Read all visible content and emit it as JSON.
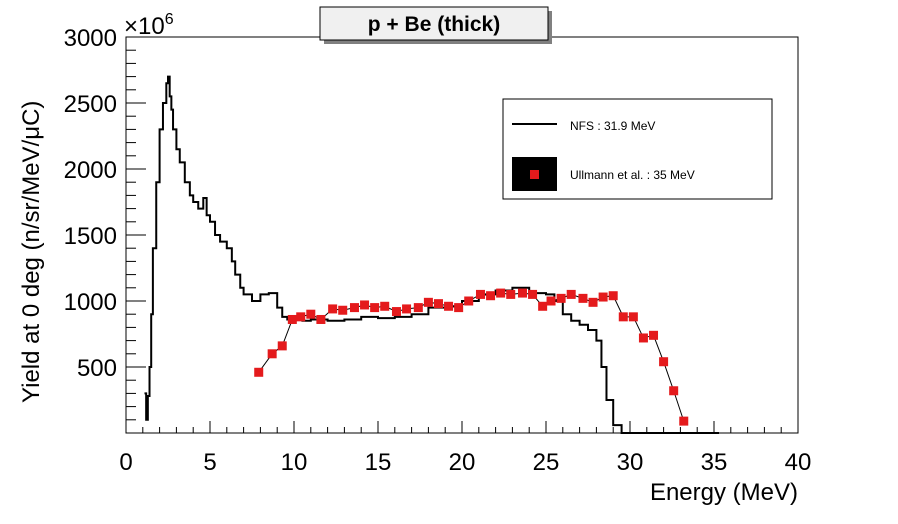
{
  "chart_data": {
    "type": "line",
    "title": "p + Be (thick)",
    "xlabel": "Energy (MeV)",
    "ylabel": "Yield at 0 deg (n/sr/MeV/μC)",
    "y_multiplier_label": "×10",
    "y_multiplier_exponent": "6",
    "xlim": [
      0,
      40
    ],
    "ylim": [
      0,
      3000
    ],
    "x_ticks": [
      0,
      5,
      10,
      15,
      20,
      25,
      30,
      35,
      40
    ],
    "y_ticks": [
      500,
      1000,
      1500,
      2000,
      2500,
      3000
    ],
    "grid": false,
    "legend_position": "top-right",
    "series": [
      {
        "name": "NFS : 31.9 MeV",
        "style": "line",
        "color": "#000000",
        "x": [
          1.1,
          1.2,
          1.3,
          1.4,
          1.5,
          1.6,
          1.8,
          2.0,
          2.2,
          2.4,
          2.5,
          2.6,
          2.7,
          2.8,
          3.0,
          3.2,
          3.5,
          3.8,
          4.0,
          4.3,
          4.6,
          4.8,
          5.0,
          5.3,
          5.6,
          6.0,
          6.3,
          6.5,
          6.8,
          7.0,
          7.5,
          8.0,
          8.5,
          9.0,
          9.3,
          9.6,
          10.0,
          10.5,
          11.0,
          12.0,
          13.0,
          14.0,
          15.0,
          16.0,
          17.0,
          18.0,
          19.0,
          20.0,
          21.0,
          22.0,
          23.0,
          24.0,
          25.0,
          25.5,
          26.0,
          26.5,
          27.0,
          27.5,
          28.0,
          28.3,
          28.6,
          29.0,
          29.5,
          30.0,
          31.0,
          32.0,
          33.0,
          34.0,
          35.0,
          35.3
        ],
        "y": [
          300,
          100,
          280,
          500,
          900,
          1400,
          1900,
          2300,
          2500,
          2650,
          2700,
          2550,
          2450,
          2300,
          2150,
          2050,
          1900,
          1800,
          1750,
          1700,
          1780,
          1650,
          1600,
          1500,
          1450,
          1400,
          1300,
          1200,
          1100,
          1050,
          1000,
          1050,
          1060,
          950,
          880,
          860,
          870,
          850,
          860,
          850,
          860,
          880,
          870,
          880,
          900,
          950,
          960,
          1000,
          1050,
          1080,
          1100,
          1060,
          1050,
          1000,
          900,
          850,
          820,
          780,
          700,
          500,
          250,
          60,
          0,
          0,
          0,
          0,
          0,
          0,
          0,
          0
        ]
      },
      {
        "name": "Ullmann et al. : 35 MeV",
        "style": "markers",
        "color": "#e41a1c",
        "x": [
          7.9,
          8.7,
          9.3,
          9.9,
          10.4,
          11.0,
          11.6,
          12.3,
          12.9,
          13.6,
          14.2,
          14.8,
          15.4,
          16.1,
          16.7,
          17.4,
          18.0,
          18.6,
          19.2,
          19.8,
          20.4,
          21.1,
          21.7,
          22.3,
          22.9,
          23.6,
          24.2,
          24.8,
          25.3,
          25.9,
          26.5,
          27.2,
          27.8,
          28.4,
          29.0,
          29.6,
          30.2,
          30.8,
          31.4,
          32.0,
          32.6,
          33.2
        ],
        "y": [
          460,
          600,
          660,
          860,
          880,
          900,
          860,
          940,
          930,
          950,
          970,
          950,
          960,
          920,
          940,
          950,
          990,
          980,
          960,
          950,
          1000,
          1050,
          1040,
          1060,
          1050,
          1060,
          1050,
          960,
          1000,
          1020,
          1050,
          1020,
          990,
          1030,
          1040,
          880,
          880,
          720,
          740,
          540,
          320,
          90
        ]
      }
    ]
  }
}
